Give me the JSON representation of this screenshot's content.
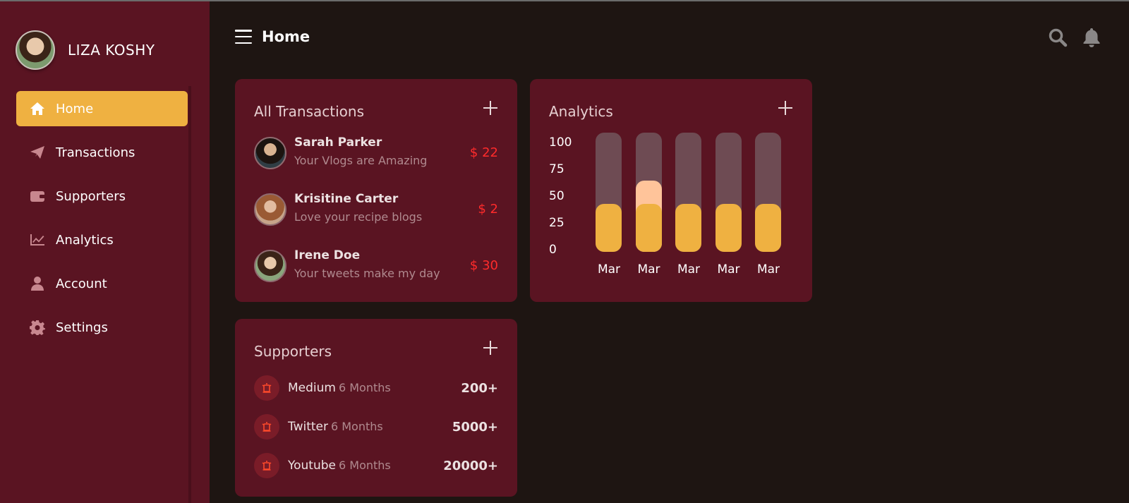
{
  "user": {
    "name": "LIZA KOSHY"
  },
  "header": {
    "title": "Home"
  },
  "nav": [
    {
      "label": "Home",
      "icon": "home-icon",
      "active": true
    },
    {
      "label": "Transactions",
      "icon": "paper-plane-icon"
    },
    {
      "label": "Supporters",
      "icon": "wallet-icon"
    },
    {
      "label": "Analytics",
      "icon": "chart-line-icon"
    },
    {
      "label": "Account",
      "icon": "user-icon"
    },
    {
      "label": "Settings",
      "icon": "gear-icon"
    }
  ],
  "transactions": {
    "title": "All Transactions",
    "items": [
      {
        "name": "Sarah Parker",
        "message": "Your Vlogs are Amazing",
        "amount": "$ 22"
      },
      {
        "name": "Krisitine Carter",
        "message": "Love your recipe blogs",
        "amount": "$ 2"
      },
      {
        "name": "Irene Doe",
        "message": "Your tweets make my day",
        "amount": "$ 30"
      }
    ]
  },
  "analytics": {
    "title": "Analytics",
    "y_ticks": [
      "100",
      "75",
      "50",
      "25",
      "0"
    ],
    "bar_labels": [
      "Mar",
      "Mar",
      "Mar",
      "Mar",
      "Mar"
    ]
  },
  "chart_data": {
    "type": "bar",
    "categories": [
      "Mar",
      "Mar",
      "Mar",
      "Mar",
      "Mar"
    ],
    "series": [
      {
        "values": [
          40,
          40,
          40,
          40,
          40
        ]
      },
      {
        "values": [
          0,
          60,
          0,
          0,
          0
        ]
      }
    ],
    "ylim": [
      0,
      100
    ],
    "y_ticks": [
      100,
      75,
      50,
      25,
      0
    ]
  },
  "supporters": {
    "title": "Supporters",
    "items": [
      {
        "name": "Medium",
        "duration": "6 Months",
        "count": "200+"
      },
      {
        "name": "Twitter",
        "duration": "6 Months",
        "count": "5000+"
      },
      {
        "name": "Youtube",
        "duration": "6 Months",
        "count": "20000+"
      }
    ]
  },
  "colors": {
    "sidebar": "#5a1422",
    "background": "#1e1512",
    "accent": "#efb141",
    "amount": "#ff2b2b"
  }
}
